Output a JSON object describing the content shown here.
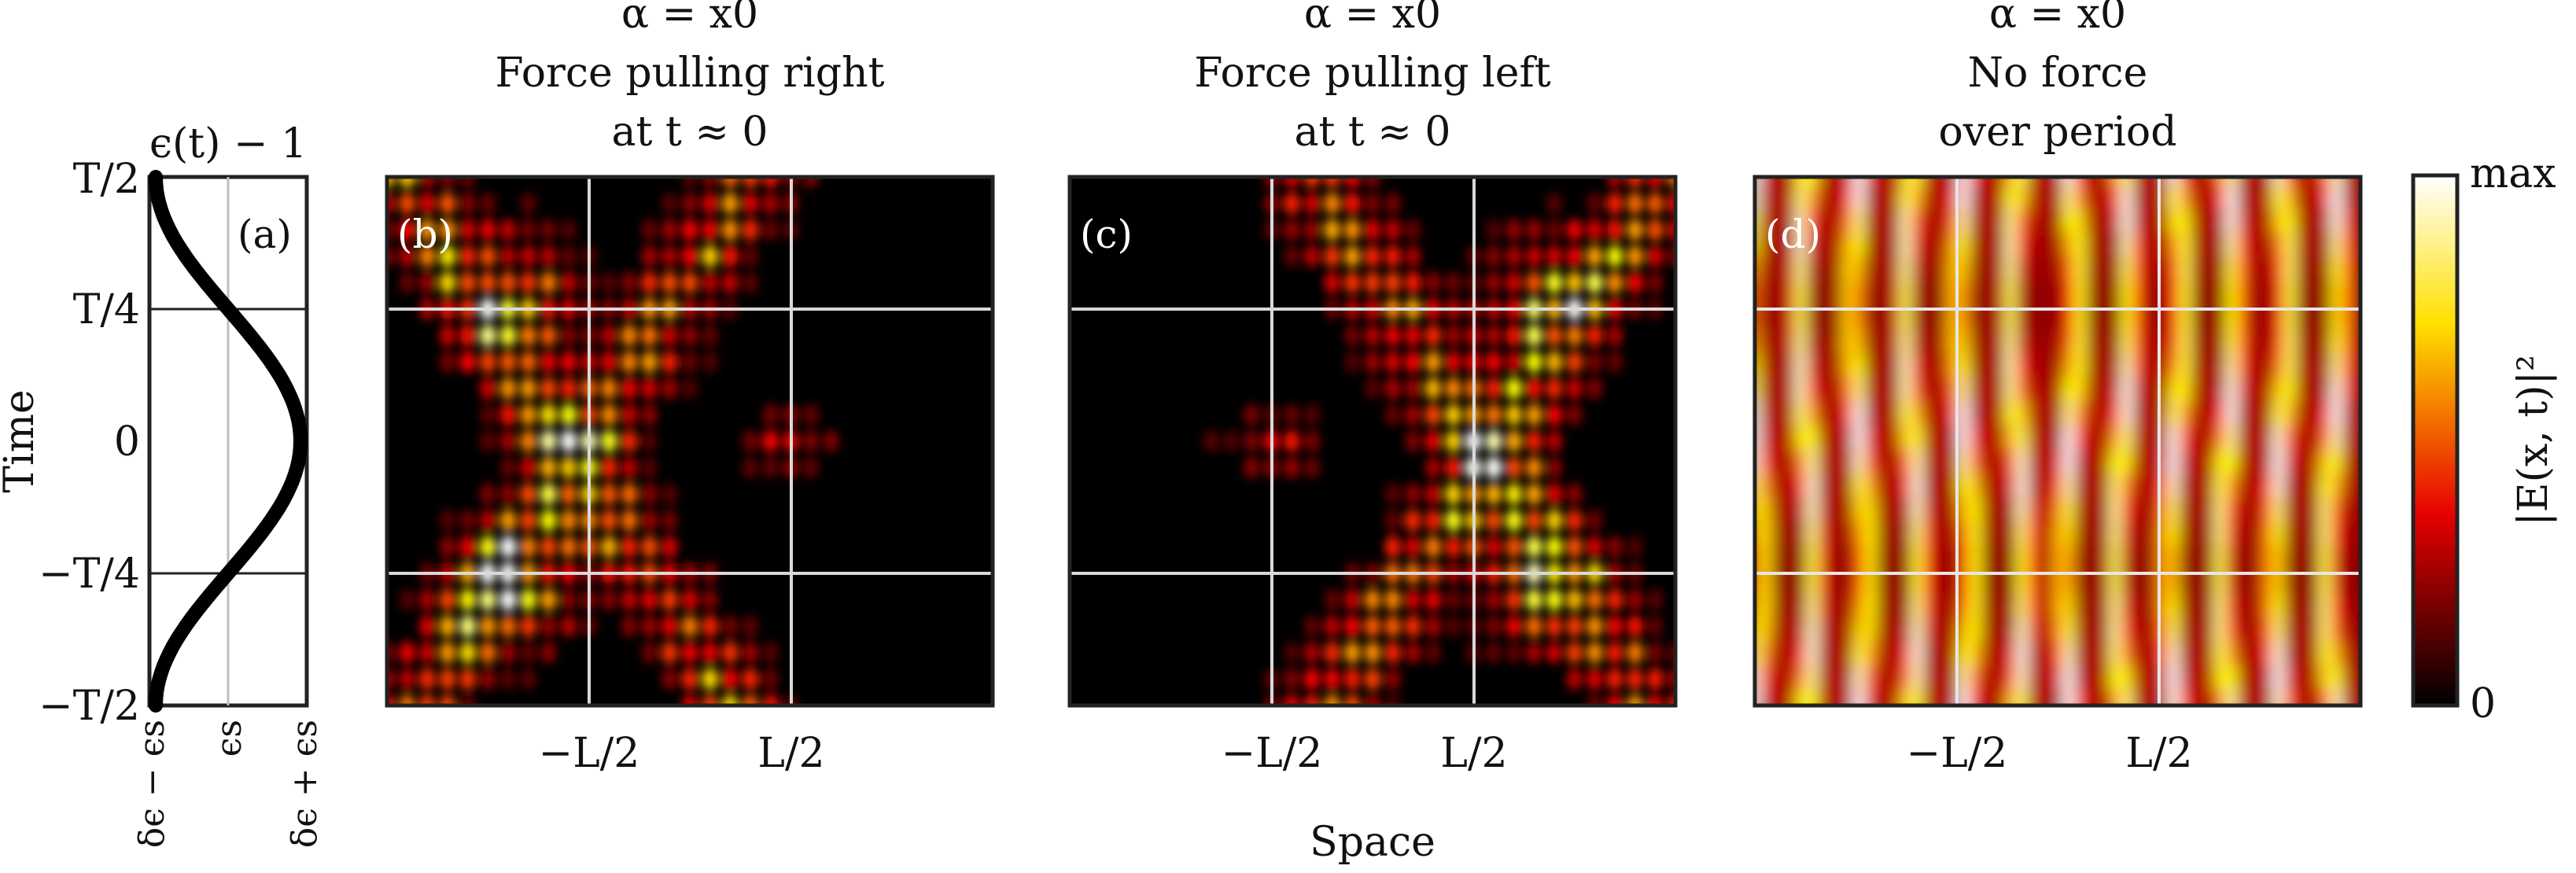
{
  "figure": {
    "y_axis_label": "Time",
    "x_axis_label": "Space",
    "y_ticks": [
      "T/2",
      "T/4",
      "0",
      "−T/4",
      "−T/2"
    ],
    "x_ticks": [
      "−L/2",
      "L/2"
    ],
    "panel_a": {
      "title": "ϵ(t) − 1",
      "tag": "(a)",
      "x_ticks": [
        "δϵ − ϵs",
        "ϵs",
        "δϵ + ϵs"
      ]
    },
    "panels": [
      {
        "tag": "(b)",
        "title_lines": [
          "α = x0",
          "Force pulling right",
          "at t ≈ 0"
        ]
      },
      {
        "tag": "(c)",
        "title_lines": [
          "α = x0",
          "Force pulling left",
          "at t ≈ 0"
        ]
      },
      {
        "tag": "(d)",
        "title_lines": [
          "α = x0",
          "No force",
          "over period"
        ]
      }
    ],
    "colorbar": {
      "label": "|E(x, t)|²",
      "max_label": "max",
      "min_label": "0",
      "colormap": "hot"
    }
  },
  "colors": {
    "axes": "#222222",
    "grid": "#d9d9d9",
    "curve": "#000000"
  }
}
